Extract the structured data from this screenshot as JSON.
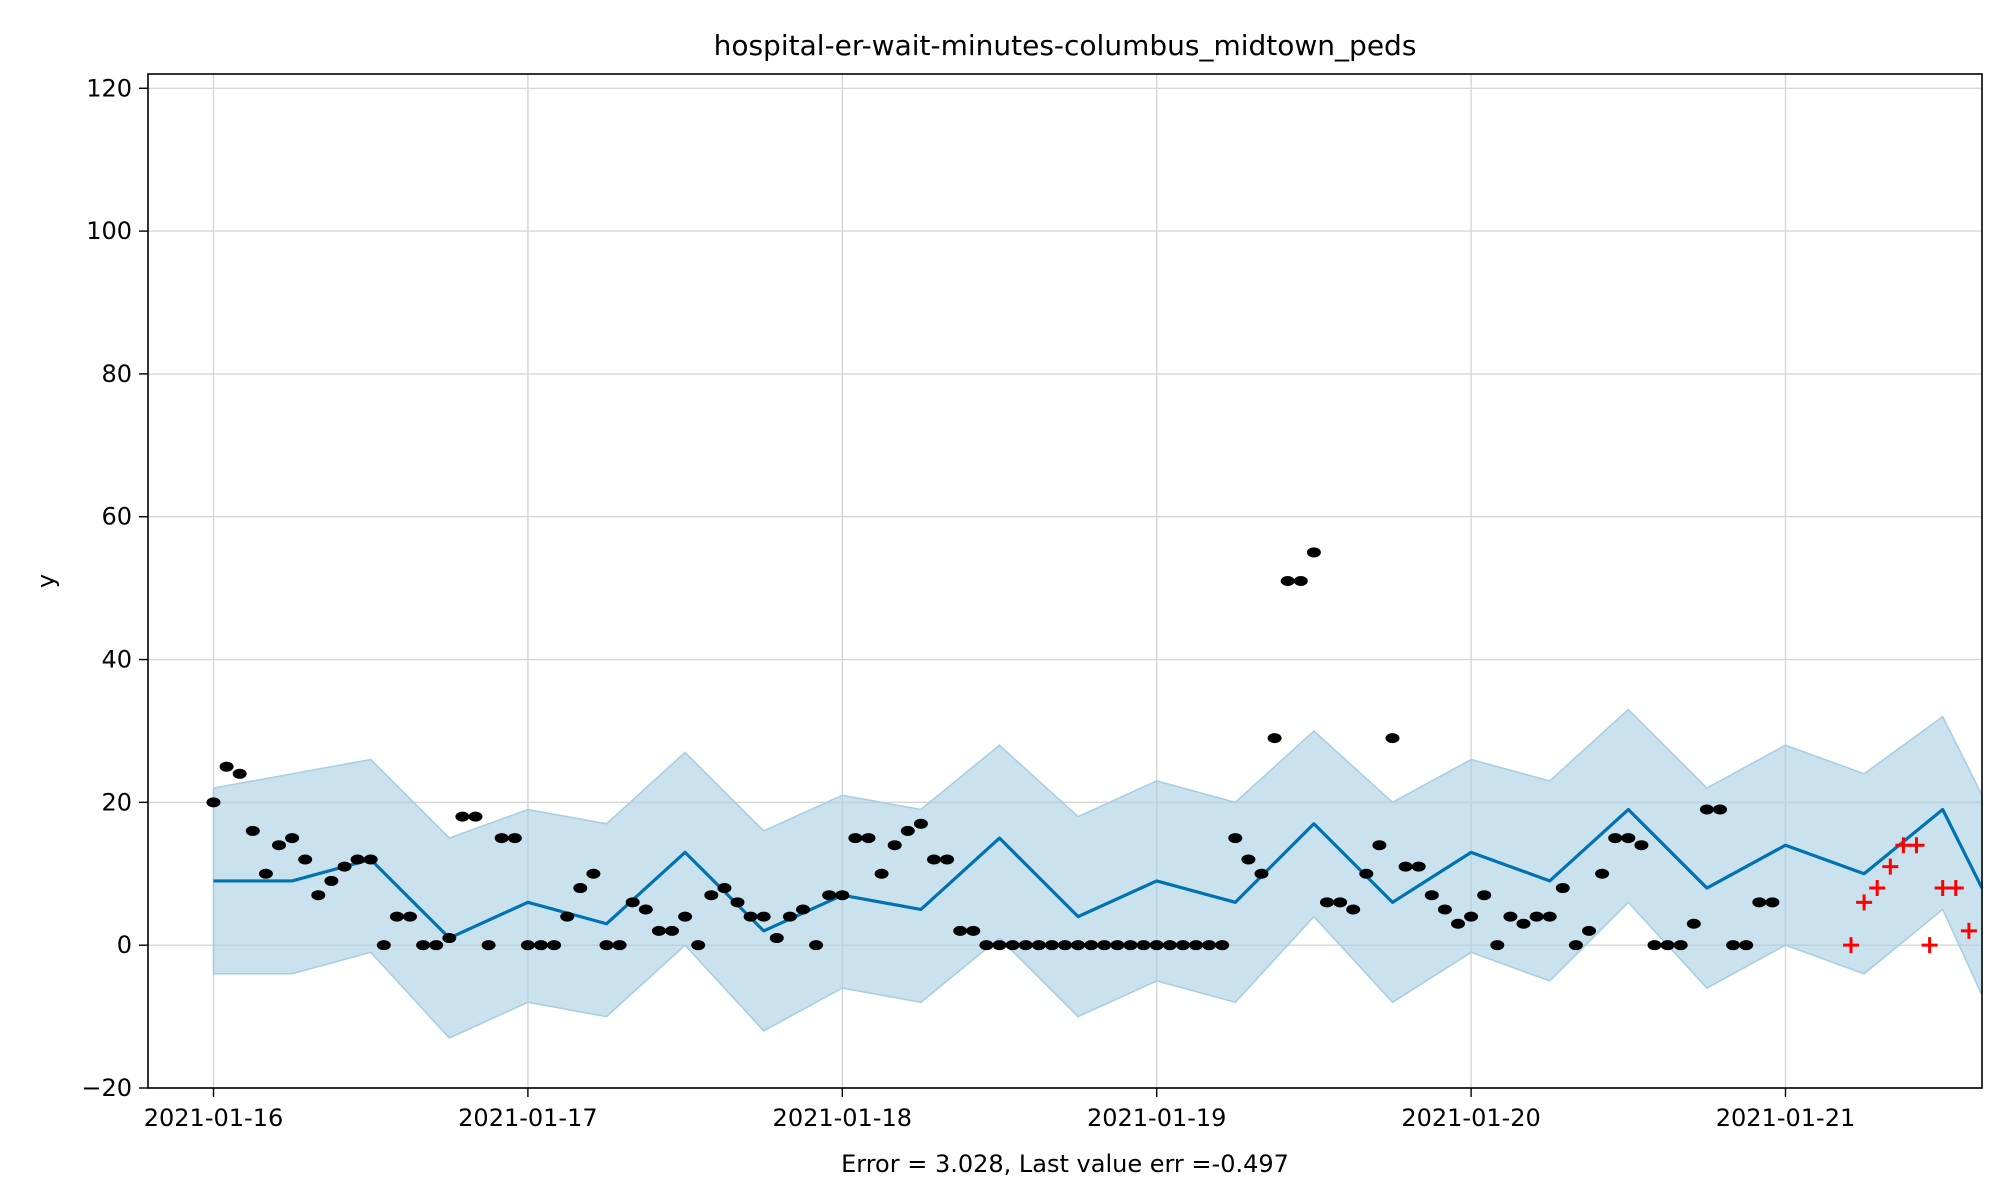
{
  "chart_data": {
    "type": "line",
    "title": "hospital-er-wait-minutes-columbus_midtown_peds",
    "xlabel": "Error = 3.028, Last value err =-0.497",
    "ylabel": "y",
    "x_ticks": [
      "2021-01-16",
      "2021-01-17",
      "2021-01-18",
      "2021-01-19",
      "2021-01-20",
      "2021-01-21"
    ],
    "y_ticks": [
      "−20",
      "0",
      "20",
      "40",
      "60",
      "80",
      "100",
      "120"
    ],
    "xlim": [
      "2021-01-15T19:00",
      "2021-01-21T15:00"
    ],
    "ylim": [
      -20,
      122
    ],
    "grid": true,
    "colors": {
      "observed": "#000000",
      "forecast_line": "#0072b2",
      "interval_fill": "#a6cde2",
      "holdout": "#ff0000"
    },
    "series": [
      {
        "role": "observed",
        "marker": "dot",
        "points": [
          [
            "2021-01-16T00:00",
            20
          ],
          [
            "2021-01-16T01:00",
            25
          ],
          [
            "2021-01-16T02:00",
            24
          ],
          [
            "2021-01-16T03:00",
            16
          ],
          [
            "2021-01-16T04:00",
            10
          ],
          [
            "2021-01-16T05:00",
            14
          ],
          [
            "2021-01-16T06:00",
            15
          ],
          [
            "2021-01-16T07:00",
            12
          ],
          [
            "2021-01-16T08:00",
            7
          ],
          [
            "2021-01-16T09:00",
            9
          ],
          [
            "2021-01-16T10:00",
            11
          ],
          [
            "2021-01-16T11:00",
            12
          ],
          [
            "2021-01-16T12:00",
            12
          ],
          [
            "2021-01-16T13:00",
            0
          ],
          [
            "2021-01-16T14:00",
            4
          ],
          [
            "2021-01-16T15:00",
            4
          ],
          [
            "2021-01-16T16:00",
            0
          ],
          [
            "2021-01-16T17:00",
            0
          ],
          [
            "2021-01-16T18:00",
            1
          ],
          [
            "2021-01-16T19:00",
            18
          ],
          [
            "2021-01-16T20:00",
            18
          ],
          [
            "2021-01-16T21:00",
            0
          ],
          [
            "2021-01-16T22:00",
            15
          ],
          [
            "2021-01-16T23:00",
            15
          ],
          [
            "2021-01-17T00:00",
            0
          ],
          [
            "2021-01-17T01:00",
            0
          ],
          [
            "2021-01-17T02:00",
            0
          ],
          [
            "2021-01-17T03:00",
            4
          ],
          [
            "2021-01-17T04:00",
            8
          ],
          [
            "2021-01-17T05:00",
            10
          ],
          [
            "2021-01-17T06:00",
            0
          ],
          [
            "2021-01-17T07:00",
            0
          ],
          [
            "2021-01-17T08:00",
            6
          ],
          [
            "2021-01-17T09:00",
            5
          ],
          [
            "2021-01-17T10:00",
            2
          ],
          [
            "2021-01-17T11:00",
            2
          ],
          [
            "2021-01-17T12:00",
            4
          ],
          [
            "2021-01-17T13:00",
            0
          ],
          [
            "2021-01-17T14:00",
            7
          ],
          [
            "2021-01-17T15:00",
            8
          ],
          [
            "2021-01-17T16:00",
            6
          ],
          [
            "2021-01-17T17:00",
            4
          ],
          [
            "2021-01-17T18:00",
            4
          ],
          [
            "2021-01-17T19:00",
            1
          ],
          [
            "2021-01-17T20:00",
            4
          ],
          [
            "2021-01-17T21:00",
            5
          ],
          [
            "2021-01-17T22:00",
            0
          ],
          [
            "2021-01-17T23:00",
            7
          ],
          [
            "2021-01-18T00:00",
            7
          ],
          [
            "2021-01-18T01:00",
            15
          ],
          [
            "2021-01-18T02:00",
            15
          ],
          [
            "2021-01-18T03:00",
            10
          ],
          [
            "2021-01-18T04:00",
            14
          ],
          [
            "2021-01-18T05:00",
            16
          ],
          [
            "2021-01-18T06:00",
            17
          ],
          [
            "2021-01-18T07:00",
            12
          ],
          [
            "2021-01-18T08:00",
            12
          ],
          [
            "2021-01-18T09:00",
            2
          ],
          [
            "2021-01-18T10:00",
            2
          ],
          [
            "2021-01-18T11:00",
            0
          ],
          [
            "2021-01-18T12:00",
            0
          ],
          [
            "2021-01-18T13:00",
            0
          ],
          [
            "2021-01-18T14:00",
            0
          ],
          [
            "2021-01-18T15:00",
            0
          ],
          [
            "2021-01-18T16:00",
            0
          ],
          [
            "2021-01-18T17:00",
            0
          ],
          [
            "2021-01-18T18:00",
            0
          ],
          [
            "2021-01-18T19:00",
            0
          ],
          [
            "2021-01-18T20:00",
            0
          ],
          [
            "2021-01-18T21:00",
            0
          ],
          [
            "2021-01-18T22:00",
            0
          ],
          [
            "2021-01-18T23:00",
            0
          ],
          [
            "2021-01-19T00:00",
            0
          ],
          [
            "2021-01-19T01:00",
            0
          ],
          [
            "2021-01-19T02:00",
            0
          ],
          [
            "2021-01-19T03:00",
            0
          ],
          [
            "2021-01-19T04:00",
            0
          ],
          [
            "2021-01-19T05:00",
            0
          ],
          [
            "2021-01-19T06:00",
            15
          ],
          [
            "2021-01-19T07:00",
            12
          ],
          [
            "2021-01-19T08:00",
            10
          ],
          [
            "2021-01-19T09:00",
            29
          ],
          [
            "2021-01-19T10:00",
            51
          ],
          [
            "2021-01-19T11:00",
            51
          ],
          [
            "2021-01-19T12:00",
            55
          ],
          [
            "2021-01-19T13:00",
            6
          ],
          [
            "2021-01-19T14:00",
            6
          ],
          [
            "2021-01-19T15:00",
            5
          ],
          [
            "2021-01-19T16:00",
            10
          ],
          [
            "2021-01-19T17:00",
            14
          ],
          [
            "2021-01-19T18:00",
            29
          ],
          [
            "2021-01-19T19:00",
            11
          ],
          [
            "2021-01-19T20:00",
            11
          ],
          [
            "2021-01-19T21:00",
            7
          ],
          [
            "2021-01-19T22:00",
            5
          ],
          [
            "2021-01-19T23:00",
            3
          ],
          [
            "2021-01-20T00:00",
            4
          ],
          [
            "2021-01-20T01:00",
            7
          ],
          [
            "2021-01-20T02:00",
            0
          ],
          [
            "2021-01-20T03:00",
            4
          ],
          [
            "2021-01-20T04:00",
            3
          ],
          [
            "2021-01-20T05:00",
            4
          ],
          [
            "2021-01-20T06:00",
            4
          ],
          [
            "2021-01-20T07:00",
            8
          ],
          [
            "2021-01-20T08:00",
            0
          ],
          [
            "2021-01-20T09:00",
            2
          ],
          [
            "2021-01-20T10:00",
            10
          ],
          [
            "2021-01-20T11:00",
            15
          ],
          [
            "2021-01-20T12:00",
            15
          ],
          [
            "2021-01-20T13:00",
            14
          ],
          [
            "2021-01-20T14:00",
            0
          ],
          [
            "2021-01-20T15:00",
            0
          ],
          [
            "2021-01-20T16:00",
            0
          ],
          [
            "2021-01-20T17:00",
            3
          ],
          [
            "2021-01-20T18:00",
            19
          ],
          [
            "2021-01-20T19:00",
            19
          ],
          [
            "2021-01-20T20:00",
            0
          ],
          [
            "2021-01-20T21:00",
            0
          ],
          [
            "2021-01-20T22:00",
            6
          ],
          [
            "2021-01-20T23:00",
            6
          ]
        ]
      },
      {
        "role": "holdout",
        "marker": "plus",
        "points": [
          [
            "2021-01-21T05:00",
            0
          ],
          [
            "2021-01-21T06:00",
            6
          ],
          [
            "2021-01-21T07:00",
            8
          ],
          [
            "2021-01-21T08:00",
            11
          ],
          [
            "2021-01-21T09:00",
            14
          ],
          [
            "2021-01-21T10:00",
            14
          ],
          [
            "2021-01-21T11:00",
            0
          ],
          [
            "2021-01-21T12:00",
            8
          ],
          [
            "2021-01-21T13:00",
            8
          ],
          [
            "2021-01-21T14:00",
            2
          ]
        ]
      },
      {
        "role": "forecast",
        "style": "line with uncertainty band",
        "points": [
          [
            "2021-01-16T00:00",
            9,
            -4,
            22
          ],
          [
            "2021-01-16T06:00",
            9,
            -4,
            24
          ],
          [
            "2021-01-16T12:00",
            12,
            -1,
            26
          ],
          [
            "2021-01-16T18:00",
            1,
            -13,
            15
          ],
          [
            "2021-01-17T00:00",
            6,
            -8,
            19
          ],
          [
            "2021-01-17T06:00",
            3,
            -10,
            17
          ],
          [
            "2021-01-17T12:00",
            13,
            0,
            27
          ],
          [
            "2021-01-17T18:00",
            2,
            -12,
            16
          ],
          [
            "2021-01-18T00:00",
            7,
            -6,
            21
          ],
          [
            "2021-01-18T06:00",
            5,
            -8,
            19
          ],
          [
            "2021-01-18T12:00",
            15,
            1,
            28
          ],
          [
            "2021-01-18T18:00",
            4,
            -10,
            18
          ],
          [
            "2021-01-19T00:00",
            9,
            -5,
            23
          ],
          [
            "2021-01-19T06:00",
            6,
            -8,
            20
          ],
          [
            "2021-01-19T12:00",
            17,
            4,
            30
          ],
          [
            "2021-01-19T18:00",
            6,
            -8,
            20
          ],
          [
            "2021-01-20T00:00",
            13,
            -1,
            26
          ],
          [
            "2021-01-20T06:00",
            9,
            -5,
            23
          ],
          [
            "2021-01-20T12:00",
            19,
            6,
            33
          ],
          [
            "2021-01-20T18:00",
            8,
            -6,
            22
          ],
          [
            "2021-01-21T00:00",
            14,
            0,
            28
          ],
          [
            "2021-01-21T06:00",
            10,
            -4,
            24
          ],
          [
            "2021-01-21T12:00",
            19,
            5,
            32
          ],
          [
            "2021-01-21T15:00",
            8,
            -7,
            21
          ]
        ]
      }
    ]
  }
}
